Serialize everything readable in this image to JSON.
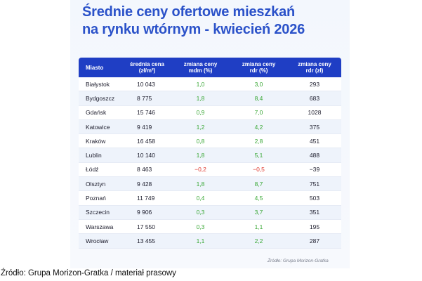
{
  "title_lines": [
    "Średnie ceny ofertowe mieszkań",
    "na rynku wtórnym - kwiecień 2026"
  ],
  "source_inner": "Źródło: Grupa Morizon-Gratka",
  "source_outer": "Źródło: Grupa Morizon-Gratka / materiał prasowy",
  "colors": {
    "header": "#1f3ec4",
    "title": "#2b52c9",
    "positive": "#3aa836",
    "negative": "#e03a2f"
  },
  "chart_data": {
    "type": "table",
    "columns": [
      [
        "Miasto"
      ],
      [
        "średnia cena",
        "(zł/m²)"
      ],
      [
        "zmiana ceny",
        "mdm (%)"
      ],
      [
        "zmiana ceny",
        "rdr (%)"
      ],
      [
        "zmiana ceny",
        "rdr (zł)"
      ]
    ],
    "rows": [
      [
        "Białystok",
        "10 043",
        "1,0",
        "3,0",
        "293"
      ],
      [
        "Bydgoszcz",
        "8 775",
        "1,8",
        "8,4",
        "683"
      ],
      [
        "Gdańsk",
        "15 746",
        "0,9",
        "7,0",
        "1028"
      ],
      [
        "Katowice",
        "9 419",
        "1,2",
        "4,2",
        "375"
      ],
      [
        "Kraków",
        "16 458",
        "0,8",
        "2,8",
        "451"
      ],
      [
        "Lublin",
        "10 140",
        "1,8",
        "5,1",
        "488"
      ],
      [
        "Łódź",
        "8 463",
        "−0,2",
        "−0,5",
        "−39"
      ],
      [
        "Olsztyn",
        "9 428",
        "1,8",
        "8,7",
        "751"
      ],
      [
        "Poznań",
        "11 749",
        "0,4",
        "4,5",
        "503"
      ],
      [
        "Szczecin",
        "9 906",
        "0,3",
        "3,7",
        "351"
      ],
      [
        "Warszawa",
        "17 550",
        "0,3",
        "1,1",
        "195"
      ],
      [
        "Wrocław",
        "13 455",
        "1,1",
        "2,2",
        "287"
      ]
    ]
  }
}
